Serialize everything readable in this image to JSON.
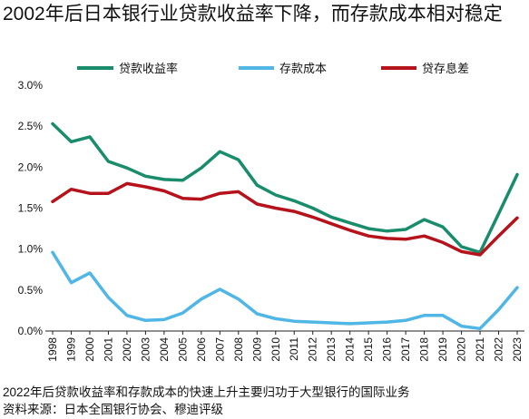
{
  "chart_data": {
    "type": "line",
    "title": "2002年后日本银行业贷款收益率下降，而存款成本相对稳定",
    "xlabel": "",
    "ylabel": "",
    "x": [
      "1998",
      "1999",
      "2000",
      "2001",
      "2002",
      "2003",
      "2004",
      "2005",
      "2006",
      "2007",
      "2008",
      "2009",
      "2010",
      "2011",
      "2012",
      "2013",
      "2014",
      "2015",
      "2016",
      "2017",
      "2018",
      "2019",
      "2020",
      "2021",
      "2022",
      "2023"
    ],
    "ylim": [
      0,
      3.0
    ],
    "ytick_labels": [
      "0.0%",
      "0.5%",
      "1.0%",
      "1.5%",
      "2.0%",
      "2.5%",
      "3.0%"
    ],
    "grid": false,
    "legend_position": "top",
    "series": [
      {
        "name": "贷款收益率",
        "color": "#188c6b",
        "values": [
          2.53,
          2.31,
          2.37,
          2.07,
          1.99,
          1.89,
          1.85,
          1.84,
          1.99,
          2.19,
          2.09,
          1.78,
          1.66,
          1.59,
          1.5,
          1.39,
          1.32,
          1.25,
          1.22,
          1.24,
          1.36,
          1.27,
          1.03,
          0.96,
          1.43,
          1.91
        ]
      },
      {
        "name": "存款成本",
        "color": "#4fb6e6",
        "values": [
          0.96,
          0.59,
          0.71,
          0.41,
          0.19,
          0.13,
          0.14,
          0.22,
          0.39,
          0.51,
          0.39,
          0.21,
          0.15,
          0.12,
          0.11,
          0.1,
          0.09,
          0.1,
          0.11,
          0.13,
          0.19,
          0.19,
          0.06,
          0.03,
          0.26,
          0.53
        ]
      },
      {
        "name": "贷存息差",
        "color": "#b5121b",
        "values": [
          1.58,
          1.73,
          1.68,
          1.68,
          1.8,
          1.76,
          1.71,
          1.62,
          1.61,
          1.68,
          1.7,
          1.55,
          1.5,
          1.46,
          1.39,
          1.31,
          1.23,
          1.16,
          1.13,
          1.12,
          1.16,
          1.08,
          0.97,
          0.93,
          1.16,
          1.38
        ]
      }
    ]
  },
  "notes": {
    "footnote": "2022年后贷款收益率和存款成本的快速上升主要归功于大型银行的国际业务",
    "source": "资料来源：日本全国银行协会、穆迪评级"
  }
}
